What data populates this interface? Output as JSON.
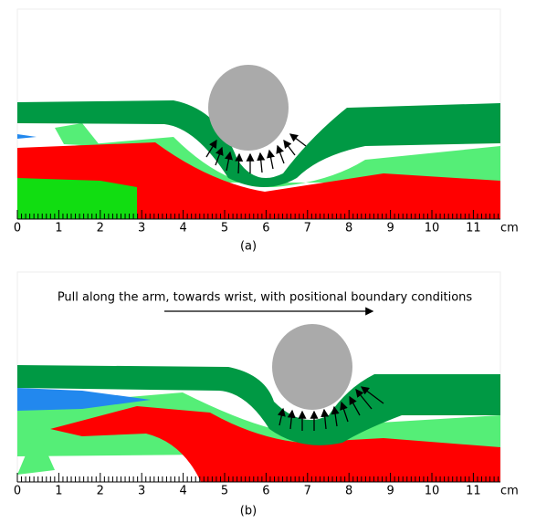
{
  "panels": [
    {
      "label": "(a)",
      "ruler": {
        "ticks": [
          "0",
          "1",
          "2",
          "3",
          "4",
          "5",
          "6",
          "7",
          "8",
          "9",
          "10",
          "11"
        ],
        "unit": "cm"
      }
    },
    {
      "label": "(b)",
      "caption": "Pull along the arm, towards wrist, with positional boundary conditions",
      "ruler": {
        "ticks": [
          "0",
          "1",
          "2",
          "3",
          "4",
          "5",
          "6",
          "7",
          "8",
          "9",
          "10",
          "11"
        ],
        "unit": "cm"
      }
    }
  ]
}
